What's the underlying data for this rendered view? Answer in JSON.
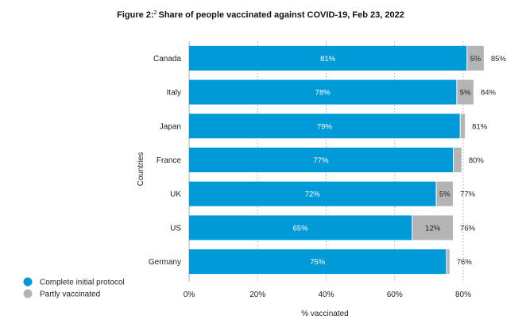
{
  "title_prefix": "Figure 2:",
  "title_superscript": "2",
  "title_main": "Share of people vaccinated against COVID-19, Feb 23, 2022",
  "colors": {
    "complete": "#009ad8",
    "partial": "#b4b4b4",
    "grid": "#9a9a9a",
    "axis": "#333333"
  },
  "chart_data": {
    "type": "bar",
    "orientation": "horizontal",
    "stacked": true,
    "title": "Share of people vaccinated against COVID-19, Feb 23, 2022",
    "xlabel": "% vaccinated",
    "ylabel": "Countries",
    "xlim": [
      0,
      80
    ],
    "x_ticks": [
      0,
      20,
      40,
      60,
      80
    ],
    "x_tick_labels": [
      "0%",
      "20%",
      "40%",
      "60%",
      "80%"
    ],
    "grid": "vertical dotted",
    "legend_position": "bottom-left",
    "categories": [
      "Canada",
      "Italy",
      "Japan",
      "France",
      "UK",
      "US",
      "Germany"
    ],
    "series": [
      {
        "name": "Complete initial protocol",
        "values": [
          81,
          78,
          79,
          77,
          72,
          65,
          75
        ],
        "labels": [
          "81%",
          "78%",
          "79%",
          "77%",
          "72%",
          "65%",
          "75%"
        ]
      },
      {
        "name": "Partly vaccinated",
        "values": [
          5,
          5,
          1.5,
          2.5,
          5,
          12,
          1
        ],
        "labels": [
          "5%",
          "5%",
          "",
          "",
          "5%",
          "12%",
          ""
        ]
      }
    ],
    "totals": [
      "85%",
      "84%",
      "81%",
      "80%",
      "77%",
      "76%",
      "76%"
    ]
  }
}
